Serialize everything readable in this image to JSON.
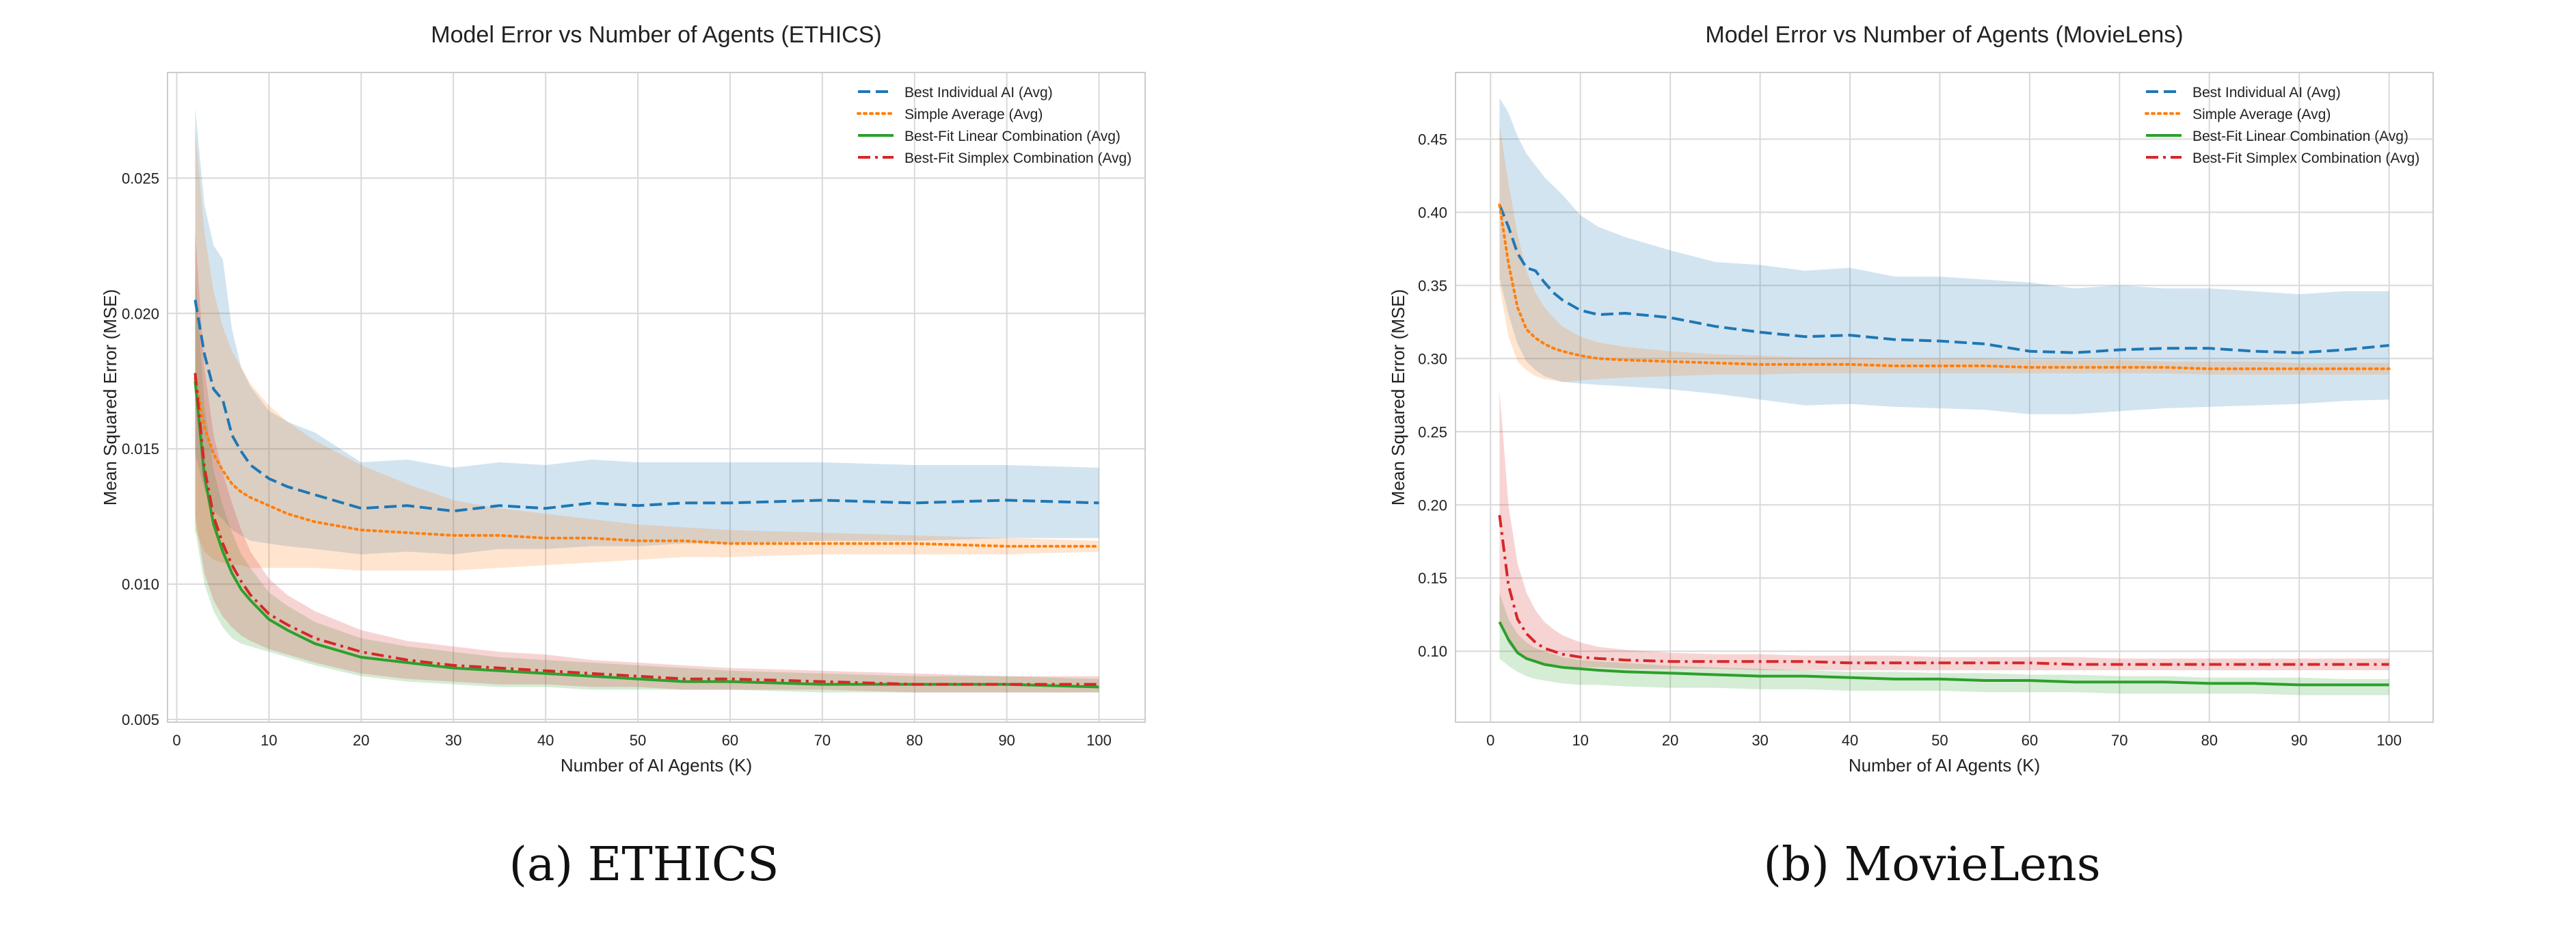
{
  "chart_data": [
    {
      "type": "line",
      "title": "Model Error vs Number of Agents (ETHICS)",
      "xlabel": "Number of AI Agents (K)",
      "ylabel": "Mean Squared Error (MSE)",
      "xlim": [
        -1,
        105
      ],
      "ylim": [
        0.0049,
        0.0289
      ],
      "xticks": [
        0,
        10,
        20,
        30,
        40,
        50,
        60,
        70,
        80,
        90,
        100
      ],
      "yticks": [
        0.005,
        0.01,
        0.015,
        0.02,
        0.025
      ],
      "ytick_labels": [
        "0.005",
        "0.010",
        "0.015",
        "0.020",
        "0.025"
      ],
      "grid": true,
      "legend": "top-right",
      "caption": "(a) ETHICS",
      "series": [
        {
          "name": "Best Individual AI (Avg)",
          "color": "#1f77b4",
          "dash": "dashed",
          "x": [
            2,
            3,
            4,
            5,
            6,
            7,
            8,
            10,
            12,
            15,
            20,
            25,
            30,
            35,
            40,
            45,
            50,
            55,
            60,
            70,
            80,
            90,
            100
          ],
          "y": [
            0.0205,
            0.0185,
            0.0172,
            0.0168,
            0.0155,
            0.0149,
            0.0144,
            0.0139,
            0.0136,
            0.0133,
            0.0128,
            0.0129,
            0.0127,
            0.0129,
            0.0128,
            0.013,
            0.0129,
            0.013,
            0.013,
            0.0131,
            0.013,
            0.0131,
            0.013
          ],
          "upper": [
            0.0276,
            0.024,
            0.0225,
            0.022,
            0.0194,
            0.018,
            0.0173,
            0.0164,
            0.016,
            0.0156,
            0.0145,
            0.0146,
            0.0143,
            0.0145,
            0.0144,
            0.0146,
            0.0145,
            0.0145,
            0.0145,
            0.0145,
            0.0144,
            0.0144,
            0.0143
          ],
          "lower": [
            0.0148,
            0.0135,
            0.0127,
            0.0124,
            0.012,
            0.0118,
            0.0116,
            0.0115,
            0.0114,
            0.0113,
            0.0111,
            0.0112,
            0.0111,
            0.0113,
            0.0113,
            0.0114,
            0.0114,
            0.0115,
            0.0115,
            0.0116,
            0.0116,
            0.0117,
            0.0117
          ]
        },
        {
          "name": "Simple Average (Avg)",
          "color": "#ff7f0e",
          "dash": "dotted",
          "x": [
            2,
            3,
            4,
            5,
            6,
            7,
            8,
            10,
            12,
            15,
            20,
            25,
            30,
            35,
            40,
            45,
            50,
            55,
            60,
            70,
            80,
            90,
            100
          ],
          "y": [
            0.0176,
            0.0158,
            0.0148,
            0.0142,
            0.0137,
            0.0134,
            0.0132,
            0.0129,
            0.0126,
            0.0123,
            0.012,
            0.0119,
            0.0118,
            0.0118,
            0.0117,
            0.0117,
            0.0116,
            0.0116,
            0.0115,
            0.0115,
            0.0115,
            0.0114,
            0.0114
          ],
          "upper": [
            0.0268,
            0.023,
            0.0208,
            0.0195,
            0.0186,
            0.018,
            0.0174,
            0.0166,
            0.016,
            0.0153,
            0.0144,
            0.0137,
            0.0131,
            0.0128,
            0.0126,
            0.0124,
            0.0122,
            0.0121,
            0.012,
            0.0119,
            0.0118,
            0.0117,
            0.0116
          ],
          "lower": [
            0.012,
            0.0112,
            0.0109,
            0.0108,
            0.0107,
            0.0107,
            0.0106,
            0.0106,
            0.0106,
            0.0106,
            0.0105,
            0.0105,
            0.0105,
            0.0106,
            0.0107,
            0.0108,
            0.0109,
            0.011,
            0.011,
            0.0111,
            0.0111,
            0.0111,
            0.0112
          ]
        },
        {
          "name": "Best-Fit Linear Combination (Avg)",
          "color": "#2ca02c",
          "dash": "solid",
          "x": [
            2,
            3,
            4,
            5,
            6,
            7,
            8,
            10,
            12,
            15,
            20,
            25,
            30,
            35,
            40,
            45,
            50,
            55,
            60,
            70,
            80,
            90,
            100
          ],
          "y": [
            0.0175,
            0.014,
            0.0122,
            0.0112,
            0.0104,
            0.0098,
            0.0094,
            0.0087,
            0.0083,
            0.0078,
            0.0073,
            0.0071,
            0.0069,
            0.0068,
            0.0067,
            0.0066,
            0.0065,
            0.0064,
            0.0064,
            0.0063,
            0.0063,
            0.0063,
            0.0062
          ],
          "upper": [
            0.0215,
            0.0166,
            0.0142,
            0.0129,
            0.0119,
            0.0111,
            0.0106,
            0.0097,
            0.0092,
            0.0086,
            0.008,
            0.0077,
            0.0075,
            0.0073,
            0.0072,
            0.0071,
            0.007,
            0.0069,
            0.0068,
            0.0067,
            0.0066,
            0.0066,
            0.0065
          ],
          "lower": [
            0.012,
            0.01,
            0.009,
            0.0084,
            0.008,
            0.0078,
            0.0077,
            0.0075,
            0.0073,
            0.007,
            0.0066,
            0.0064,
            0.0063,
            0.0062,
            0.0062,
            0.0061,
            0.0061,
            0.0061,
            0.0061,
            0.006,
            0.006,
            0.006,
            0.006
          ]
        },
        {
          "name": "Best-Fit Simplex Combination (Avg)",
          "color": "#d62728",
          "dash": "dashdot",
          "x": [
            2,
            3,
            4,
            5,
            6,
            7,
            8,
            10,
            12,
            15,
            20,
            25,
            30,
            35,
            40,
            45,
            50,
            55,
            60,
            70,
            80,
            90,
            100
          ],
          "y": [
            0.0178,
            0.0143,
            0.0125,
            0.0115,
            0.0107,
            0.0101,
            0.0096,
            0.0089,
            0.0085,
            0.008,
            0.0075,
            0.0072,
            0.007,
            0.0069,
            0.0068,
            0.0067,
            0.0066,
            0.0065,
            0.0065,
            0.0064,
            0.0063,
            0.0063,
            0.0063
          ],
          "upper": [
            0.023,
            0.018,
            0.0155,
            0.0141,
            0.013,
            0.012,
            0.0112,
            0.0102,
            0.0096,
            0.009,
            0.0083,
            0.0079,
            0.0077,
            0.0075,
            0.0074,
            0.0072,
            0.0071,
            0.007,
            0.0069,
            0.0068,
            0.0067,
            0.0066,
            0.0066
          ],
          "lower": [
            0.0125,
            0.0104,
            0.0094,
            0.0088,
            0.0084,
            0.0081,
            0.0079,
            0.0076,
            0.0074,
            0.0071,
            0.0067,
            0.0065,
            0.0064,
            0.0063,
            0.0063,
            0.0062,
            0.0062,
            0.0061,
            0.0061,
            0.0061,
            0.006,
            0.006,
            0.006
          ]
        }
      ]
    },
    {
      "type": "line",
      "title": "Model Error vs Number of Agents (MovieLens)",
      "xlabel": "Number of AI Agents (K)",
      "ylabel": "Mean Squared Error (MSE)",
      "xlim": [
        -3.9,
        104.9
      ],
      "ylim": [
        0.0515,
        0.4955
      ],
      "xticks": [
        0,
        10,
        20,
        30,
        40,
        50,
        60,
        70,
        80,
        90,
        100
      ],
      "yticks": [
        0.1,
        0.15,
        0.2,
        0.25,
        0.3,
        0.35,
        0.4,
        0.45
      ],
      "ytick_labels": [
        "0.10",
        "0.15",
        "0.20",
        "0.25",
        "0.30",
        "0.35",
        "0.40",
        "0.45"
      ],
      "grid": true,
      "legend": "top-right",
      "caption": "(b) MovieLens",
      "series": [
        {
          "name": "Best Individual AI (Avg)",
          "color": "#1f77b4",
          "dash": "dashed",
          "x": [
            1,
            2,
            3,
            4,
            5,
            6,
            7,
            8,
            10,
            12,
            15,
            20,
            25,
            30,
            35,
            40,
            45,
            50,
            55,
            60,
            65,
            70,
            75,
            80,
            85,
            90,
            95,
            100
          ],
          "y": [
            0.405,
            0.39,
            0.372,
            0.362,
            0.36,
            0.352,
            0.345,
            0.34,
            0.333,
            0.33,
            0.331,
            0.328,
            0.322,
            0.318,
            0.315,
            0.316,
            0.313,
            0.312,
            0.31,
            0.305,
            0.304,
            0.306,
            0.307,
            0.307,
            0.305,
            0.304,
            0.306,
            0.309
          ],
          "upper": [
            0.478,
            0.468,
            0.452,
            0.44,
            0.432,
            0.424,
            0.418,
            0.412,
            0.398,
            0.39,
            0.383,
            0.374,
            0.366,
            0.364,
            0.36,
            0.362,
            0.356,
            0.356,
            0.354,
            0.352,
            0.348,
            0.35,
            0.348,
            0.348,
            0.346,
            0.344,
            0.346,
            0.346
          ],
          "lower": [
            0.355,
            0.33,
            0.31,
            0.298,
            0.292,
            0.288,
            0.286,
            0.284,
            0.283,
            0.282,
            0.281,
            0.279,
            0.276,
            0.272,
            0.268,
            0.269,
            0.267,
            0.266,
            0.265,
            0.262,
            0.262,
            0.264,
            0.266,
            0.267,
            0.268,
            0.269,
            0.271,
            0.272
          ]
        },
        {
          "name": "Simple Average (Avg)",
          "color": "#ff7f0e",
          "dash": "dotted",
          "x": [
            1,
            2,
            3,
            4,
            5,
            6,
            7,
            8,
            10,
            12,
            15,
            20,
            25,
            30,
            35,
            40,
            45,
            50,
            55,
            60,
            65,
            70,
            75,
            80,
            85,
            90,
            95,
            100
          ],
          "y": [
            0.405,
            0.365,
            0.335,
            0.32,
            0.314,
            0.31,
            0.307,
            0.305,
            0.302,
            0.3,
            0.299,
            0.298,
            0.297,
            0.296,
            0.296,
            0.296,
            0.295,
            0.295,
            0.295,
            0.294,
            0.294,
            0.294,
            0.294,
            0.293,
            0.293,
            0.293,
            0.293,
            0.293
          ],
          "upper": [
            0.46,
            0.42,
            0.385,
            0.36,
            0.345,
            0.335,
            0.328,
            0.322,
            0.315,
            0.311,
            0.308,
            0.305,
            0.303,
            0.302,
            0.301,
            0.301,
            0.3,
            0.3,
            0.3,
            0.299,
            0.299,
            0.299,
            0.298,
            0.298,
            0.298,
            0.297,
            0.297,
            0.297
          ],
          "lower": [
            0.35,
            0.315,
            0.298,
            0.292,
            0.288,
            0.286,
            0.285,
            0.284,
            0.285,
            0.286,
            0.287,
            0.288,
            0.289,
            0.289,
            0.29,
            0.29,
            0.29,
            0.29,
            0.29,
            0.29,
            0.29,
            0.29,
            0.29,
            0.289,
            0.289,
            0.289,
            0.289,
            0.289
          ]
        },
        {
          "name": "Best-Fit Linear Combination (Avg)",
          "color": "#2ca02c",
          "dash": "solid",
          "x": [
            1,
            2,
            3,
            4,
            5,
            6,
            7,
            8,
            10,
            12,
            15,
            20,
            25,
            30,
            35,
            40,
            45,
            50,
            55,
            60,
            65,
            70,
            75,
            80,
            85,
            90,
            95,
            100
          ],
          "y": [
            0.12,
            0.108,
            0.099,
            0.095,
            0.093,
            0.091,
            0.09,
            0.089,
            0.088,
            0.087,
            0.086,
            0.085,
            0.084,
            0.083,
            0.083,
            0.082,
            0.081,
            0.081,
            0.08,
            0.08,
            0.079,
            0.079,
            0.079,
            0.078,
            0.078,
            0.077,
            0.077,
            0.077
          ],
          "upper": [
            0.14,
            0.122,
            0.112,
            0.106,
            0.102,
            0.1,
            0.098,
            0.096,
            0.094,
            0.093,
            0.092,
            0.09,
            0.089,
            0.088,
            0.087,
            0.086,
            0.086,
            0.085,
            0.085,
            0.084,
            0.084,
            0.083,
            0.083,
            0.082,
            0.082,
            0.082,
            0.081,
            0.081
          ],
          "lower": [
            0.095,
            0.09,
            0.086,
            0.083,
            0.081,
            0.08,
            0.079,
            0.078,
            0.077,
            0.077,
            0.076,
            0.075,
            0.075,
            0.074,
            0.074,
            0.073,
            0.073,
            0.073,
            0.072,
            0.072,
            0.072,
            0.071,
            0.071,
            0.071,
            0.071,
            0.07,
            0.07,
            0.07
          ]
        },
        {
          "name": "Best-Fit Simplex Combination (Avg)",
          "color": "#d62728",
          "dash": "dashdot",
          "x": [
            1,
            2,
            3,
            4,
            5,
            6,
            7,
            8,
            10,
            12,
            15,
            20,
            25,
            30,
            35,
            40,
            45,
            50,
            55,
            60,
            65,
            70,
            75,
            80,
            85,
            90,
            95,
            100
          ],
          "y": [
            0.193,
            0.145,
            0.122,
            0.112,
            0.106,
            0.102,
            0.1,
            0.098,
            0.096,
            0.095,
            0.094,
            0.093,
            0.093,
            0.093,
            0.093,
            0.092,
            0.092,
            0.092,
            0.092,
            0.092,
            0.091,
            0.091,
            0.091,
            0.091,
            0.091,
            0.091,
            0.091,
            0.091
          ],
          "upper": [
            0.278,
            0.2,
            0.16,
            0.14,
            0.128,
            0.12,
            0.115,
            0.111,
            0.106,
            0.103,
            0.101,
            0.099,
            0.098,
            0.098,
            0.097,
            0.097,
            0.097,
            0.096,
            0.096,
            0.096,
            0.096,
            0.095,
            0.095,
            0.095,
            0.095,
            0.095,
            0.095,
            0.095
          ],
          "lower": [
            0.12,
            0.105,
            0.098,
            0.095,
            0.093,
            0.092,
            0.091,
            0.09,
            0.089,
            0.089,
            0.088,
            0.088,
            0.088,
            0.087,
            0.087,
            0.087,
            0.087,
            0.087,
            0.087,
            0.087,
            0.087,
            0.087,
            0.087,
            0.087,
            0.087,
            0.087,
            0.087,
            0.087
          ]
        }
      ]
    }
  ]
}
